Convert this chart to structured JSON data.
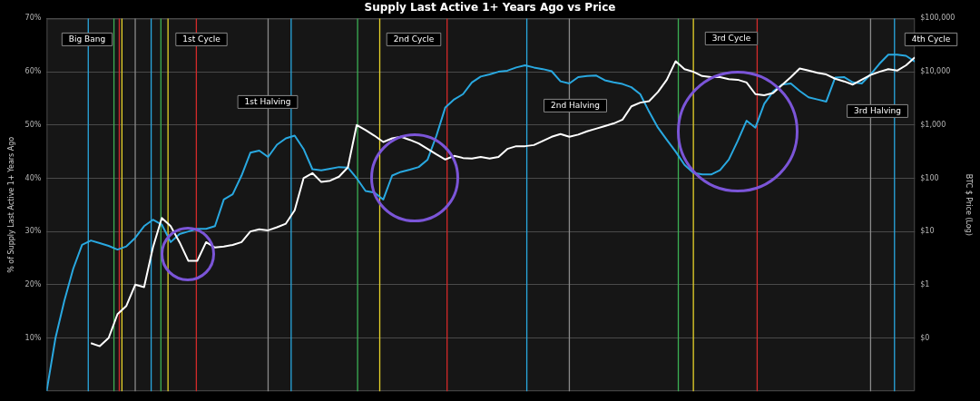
{
  "chart_data": {
    "type": "line",
    "title": "Supply Last Active 1+ Years Ago vs Price",
    "ylabel": "% of Supply Last Active 1+ Years Ago",
    "y2label": "BTC $ Price (Log)",
    "categories": [
      null,
      null,
      null,
      null,
      null,
      null,
      null,
      null,
      null,
      null,
      null,
      null,
      null,
      null,
      null,
      null,
      null,
      null,
      null,
      null,
      null,
      null,
      null,
      null,
      null,
      null,
      null,
      null,
      null,
      null,
      null,
      null,
      null,
      null,
      null,
      null,
      null,
      null,
      null,
      null,
      null,
      null,
      null,
      null,
      null,
      null,
      null,
      null,
      null,
      null,
      null,
      null,
      null,
      null,
      null,
      null,
      null,
      null,
      null,
      null,
      null,
      null,
      null,
      null,
      null,
      null,
      null,
      null,
      null,
      null,
      null,
      null,
      null,
      null,
      null,
      null,
      null,
      null,
      null,
      null,
      null,
      null,
      null,
      null,
      null,
      null,
      null,
      null,
      null,
      null,
      null,
      null,
      null,
      null,
      null,
      null,
      null,
      null,
      null
    ],
    "series": [
      {
        "color": "#29a8e0",
        "values": [
          0,
          10,
          17,
          23,
          27.5,
          28.3,
          27.8,
          27.3,
          26.6,
          27.2,
          28.8,
          31,
          32.2,
          31.3,
          28,
          29.5,
          30,
          30.5,
          30.5,
          31,
          36,
          37,
          40.5,
          44.8,
          45.2,
          44,
          46.3,
          47.5,
          48,
          45.5,
          41.7,
          41.5,
          41.8,
          42.1,
          42,
          40,
          37.6,
          37.3,
          36,
          40.5,
          41.2,
          41.6,
          42.1,
          43.5,
          48,
          53.3,
          54.8,
          55.8,
          58,
          59.1,
          59.5,
          60,
          60.2,
          60.8,
          61.2,
          60.8,
          60.5,
          60.1,
          58.2,
          57.8,
          59,
          59.2,
          59.3,
          58.4,
          58,
          57.7,
          57.1,
          55.8,
          52.5,
          49.5,
          47.2,
          45,
          42.5,
          41,
          40.7,
          40.7,
          41.5,
          43.5,
          47,
          50.8,
          49.5,
          54,
          56.3,
          57.6,
          57.8,
          56.4,
          55.2,
          54.8,
          54.4,
          58.9,
          59,
          58,
          57.8,
          59.5,
          61.5,
          63.2,
          63.2,
          63,
          61.9
        ]
      },
      {
        "color": "#ffffff",
        "axis": "y2",
        "values": [
          null,
          null,
          null,
          null,
          null,
          0.08,
          0.07,
          0.1,
          0.28,
          0.4,
          1,
          0.9,
          5,
          18,
          12.6,
          6.3,
          2.8,
          2.8,
          6.3,
          5,
          5.2,
          5.6,
          6.3,
          10,
          11,
          10.5,
          12,
          14,
          25,
          100,
          125,
          85,
          90,
          107,
          160,
          1000,
          800,
          630,
          480,
          560,
          600,
          525,
          450,
          355,
          280,
          225,
          263,
          240,
          235,
          250,
          235,
          250,
          355,
          400,
          400,
          420,
          500,
          600,
          675,
          600,
          660,
          760,
          850,
          950,
          1070,
          1260,
          2240,
          2630,
          2800,
          4170,
          7080,
          15800,
          11200,
          10000,
          8300,
          7900,
          7900,
          7240,
          7080,
          6300,
          3800,
          3630,
          3980,
          5620,
          7940,
          11500,
          10500,
          9550,
          8900,
          7400,
          6600,
          5750,
          7100,
          8700,
          10000,
          11200,
          10500,
          13200,
          18600
        ]
      }
    ],
    "ylim": [
      0,
      70
    ],
    "yticks": [
      {
        "value": 10,
        "label": "10%"
      },
      {
        "value": 20,
        "label": "20%"
      },
      {
        "value": 30,
        "label": "30%"
      },
      {
        "value": 40,
        "label": "40%"
      },
      {
        "value": 50,
        "label": "50%"
      },
      {
        "value": 60,
        "label": "60%"
      },
      {
        "value": 70,
        "label": "70%"
      }
    ],
    "y2lim": [
      0.01,
      100000
    ],
    "y2ticks": [
      {
        "value": 0.1,
        "label": "$0"
      },
      {
        "value": 1,
        "label": "$1"
      },
      {
        "value": 10,
        "label": "$10"
      },
      {
        "value": 100,
        "label": "$100"
      },
      {
        "value": 1000,
        "label": "$1,000"
      },
      {
        "value": 10000,
        "label": "$10,000"
      },
      {
        "value": 100000,
        "label": "$100,000"
      }
    ],
    "log": "y2",
    "grid": true,
    "legend": false,
    "tick_labels": "y",
    "annotations": [
      "Big Bang",
      "1st Cycle",
      "2nd Cycle",
      "3rd Cycle",
      "4th Cycle",
      "1st Halving",
      "2nd Halving",
      "3rd Halving"
    ]
  }
}
